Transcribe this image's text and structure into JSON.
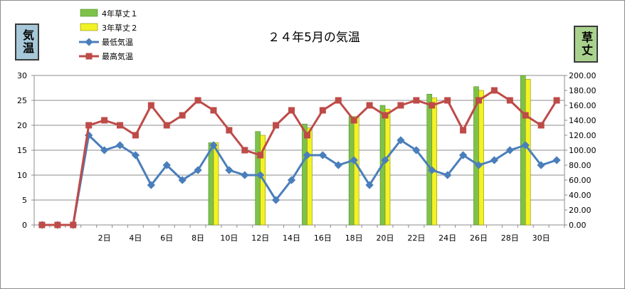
{
  "colors": {
    "series1_bar": "#7fc24a",
    "series2_bar": "#f2f225",
    "min_line": "#4a7ebb",
    "max_line": "#be4b48",
    "left_box_bg": "#a6c8d8",
    "right_box_bg": "#a9d18e"
  },
  "left_axis_box": "気温",
  "right_axis_box": "草丈",
  "chart_data": {
    "type": "bar+line",
    "title": "２４年5月の気温",
    "x": [
      "",
      "",
      "",
      "",
      "2日",
      "",
      "4日",
      "",
      "6日",
      "",
      "8日",
      "",
      "10日",
      "",
      "12日",
      "",
      "14日",
      "",
      "16日",
      "",
      "18日",
      "",
      "20日",
      "",
      "22日",
      "",
      "24日",
      "",
      "26日",
      "",
      "28日",
      "",
      "30日",
      ""
    ],
    "x_tick_labels": [
      "2日",
      "4日",
      "6日",
      "8日",
      "10日",
      "12日",
      "14日",
      "16日",
      "18日",
      "20日",
      "22日",
      "24日",
      "26日",
      "28日",
      "30日"
    ],
    "y_left_ticks": [
      "0",
      "5",
      "10",
      "15",
      "20",
      "25",
      "30"
    ],
    "y_right_ticks": [
      "0.00",
      "20.00",
      "40.00",
      "60.00",
      "80.00",
      "100.00",
      "120.00",
      "140.00",
      "160.00",
      "180.00",
      "200.00"
    ],
    "ylim_left": [
      0,
      30
    ],
    "ylim_right": [
      0,
      200
    ],
    "legend_position": "top-left",
    "series": [
      {
        "name": "4年草丈１",
        "kind": "bar",
        "axis": "right",
        "values": [
          null,
          null,
          null,
          null,
          null,
          null,
          null,
          null,
          null,
          null,
          null,
          110,
          null,
          null,
          125,
          null,
          null,
          135,
          null,
          null,
          145,
          null,
          160,
          null,
          null,
          175,
          null,
          null,
          185,
          null,
          null,
          200,
          null,
          null
        ]
      },
      {
        "name": "3年草丈２",
        "kind": "bar",
        "axis": "right",
        "values": [
          null,
          null,
          null,
          null,
          null,
          null,
          null,
          null,
          null,
          null,
          null,
          110,
          null,
          null,
          120,
          null,
          null,
          130,
          null,
          null,
          145,
          null,
          155,
          null,
          null,
          170,
          null,
          null,
          180,
          null,
          null,
          195,
          null,
          null
        ]
      },
      {
        "name": "最低気温",
        "kind": "line",
        "axis": "left",
        "values": [
          0,
          0,
          0,
          18,
          15,
          16,
          14,
          8,
          12,
          9,
          11,
          16,
          11,
          10,
          10,
          5,
          9,
          14,
          14,
          12,
          13,
          8,
          13,
          17,
          15,
          11,
          10,
          14,
          12,
          13,
          15,
          16,
          12,
          13
        ]
      },
      {
        "name": "最高気温",
        "kind": "line",
        "axis": "left",
        "values": [
          0,
          0,
          0,
          20,
          21,
          20,
          18,
          24,
          20,
          22,
          25,
          23,
          19,
          15,
          14,
          20,
          23,
          18,
          23,
          25,
          21,
          24,
          22,
          24,
          25,
          24,
          25,
          19,
          25,
          27,
          25,
          22,
          20,
          25
        ]
      }
    ]
  }
}
